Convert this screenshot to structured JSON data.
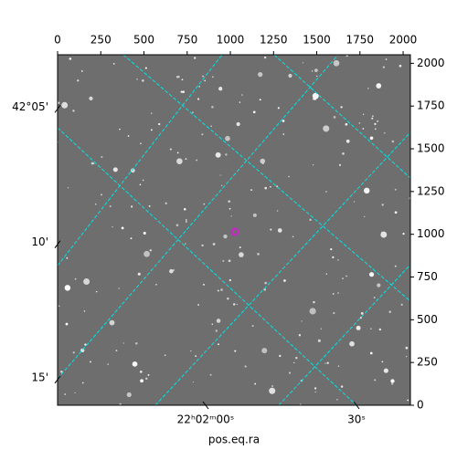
{
  "chart_data": {
    "type": "image",
    "xlabel": "pos.eq.ra",
    "xlim": [
      0,
      2042
    ],
    "ylim": [
      0,
      2050
    ],
    "xticks": [
      0,
      250,
      500,
      750,
      1000,
      1250,
      1500,
      1750,
      2000
    ],
    "yticks": [
      0,
      250,
      500,
      750,
      1000,
      1250,
      1500,
      1750,
      2000
    ],
    "ra_ticks": [
      {
        "value": 857,
        "label": "22ʰ02ᵐ00ˢ"
      },
      {
        "value": 1730,
        "label": "30ˢ"
      }
    ],
    "dec_ticks": [
      {
        "value": 1733,
        "label": "42°05'"
      },
      {
        "value": 941,
        "label": "10'"
      },
      {
        "value": 150,
        "label": "15'"
      }
    ],
    "grid_color": "#00e5e5"
  }
}
